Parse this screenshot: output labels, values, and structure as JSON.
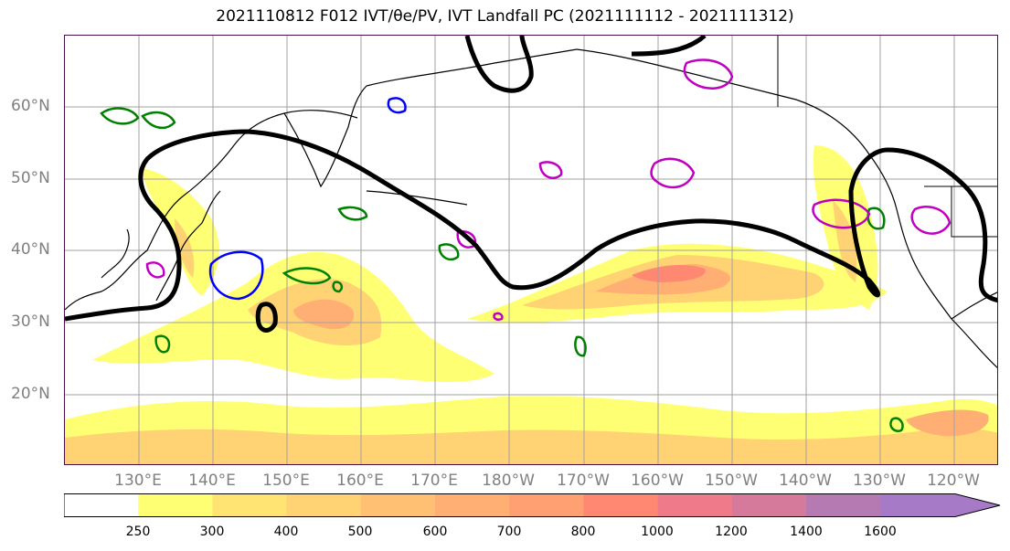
{
  "title": "2021110812 F012 IVT/θe/PV, IVT Landfall PC (2021111112 - 2021111312)",
  "axes": {
    "lon_labels": [
      "130°E",
      "140°E",
      "150°E",
      "160°E",
      "170°E",
      "180°W",
      "170°W",
      "160°W",
      "150°W",
      "140°W",
      "130°W",
      "120°W"
    ],
    "lat_labels": [
      "60°N",
      "50°N",
      "40°N",
      "30°N",
      "20°N"
    ]
  },
  "colorbar": {
    "tick_labels": [
      "250",
      "300",
      "400",
      "500",
      "600",
      "700",
      "800",
      "1000",
      "1200",
      "1400",
      "1600"
    ],
    "colors": [
      "#ffffff",
      "#ffff73",
      "#ffe373",
      "#ffd273",
      "#ffc073",
      "#ffaf73",
      "#ffa073",
      "#ff8873",
      "#ef7a8a",
      "#d67a9c",
      "#b57ab2",
      "#a77ac8"
    ]
  },
  "colors": {
    "pc_contour": "#000000",
    "theta_e_contour": "#008000",
    "pv_positive_contour": "#c000c0",
    "pv_negative_contour": "#0000ff",
    "frame": "#4b0f4b"
  }
}
